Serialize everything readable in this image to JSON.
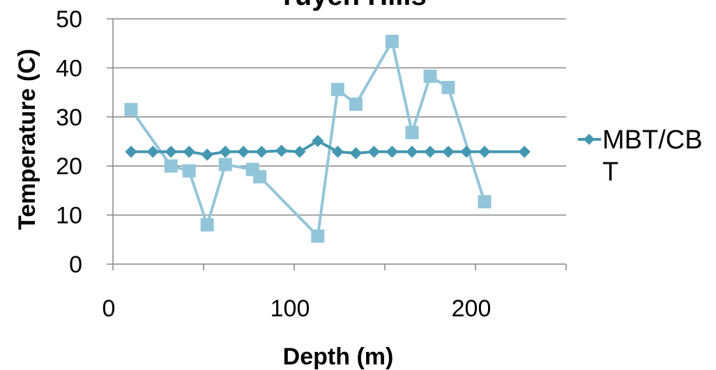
{
  "chart_data": {
    "type": "line",
    "title": "Yuyeh Hills",
    "xlabel": "Depth (m)",
    "ylabel": "Temperature (C)",
    "xlim": [
      0,
      250
    ],
    "ylim": [
      0,
      50
    ],
    "x_ticks": [
      0,
      100,
      200
    ],
    "y_ticks": [
      0,
      10,
      20,
      30,
      40,
      50
    ],
    "grid": "horizontal",
    "legend": "right",
    "series": [
      {
        "name": "",
        "color": "#92C5DA",
        "marker": "square",
        "x": [
          10,
          32,
          42,
          52,
          62,
          77,
          81,
          113,
          124,
          134,
          154,
          165,
          175,
          185,
          205
        ],
        "y": [
          31.5,
          20,
          19,
          8,
          20.3,
          19.3,
          17.8,
          5.7,
          35.6,
          32.6,
          45.4,
          26.8,
          38.3,
          36,
          12.7
        ]
      },
      {
        "name": "MBT/CB\nT",
        "color": "#4497B1",
        "marker": "diamond",
        "x": [
          10,
          22,
          32,
          42,
          52,
          62,
          72,
          82,
          93,
          103,
          113,
          124,
          134,
          144,
          154,
          165,
          175,
          185,
          195,
          205,
          227
        ],
        "y": [
          22.9,
          22.9,
          22.9,
          22.9,
          22.3,
          22.9,
          22.9,
          22.9,
          23.1,
          22.9,
          25.1,
          22.9,
          22.6,
          22.9,
          22.9,
          22.9,
          22.9,
          22.9,
          22.9,
          22.9,
          22.9
        ]
      }
    ]
  }
}
